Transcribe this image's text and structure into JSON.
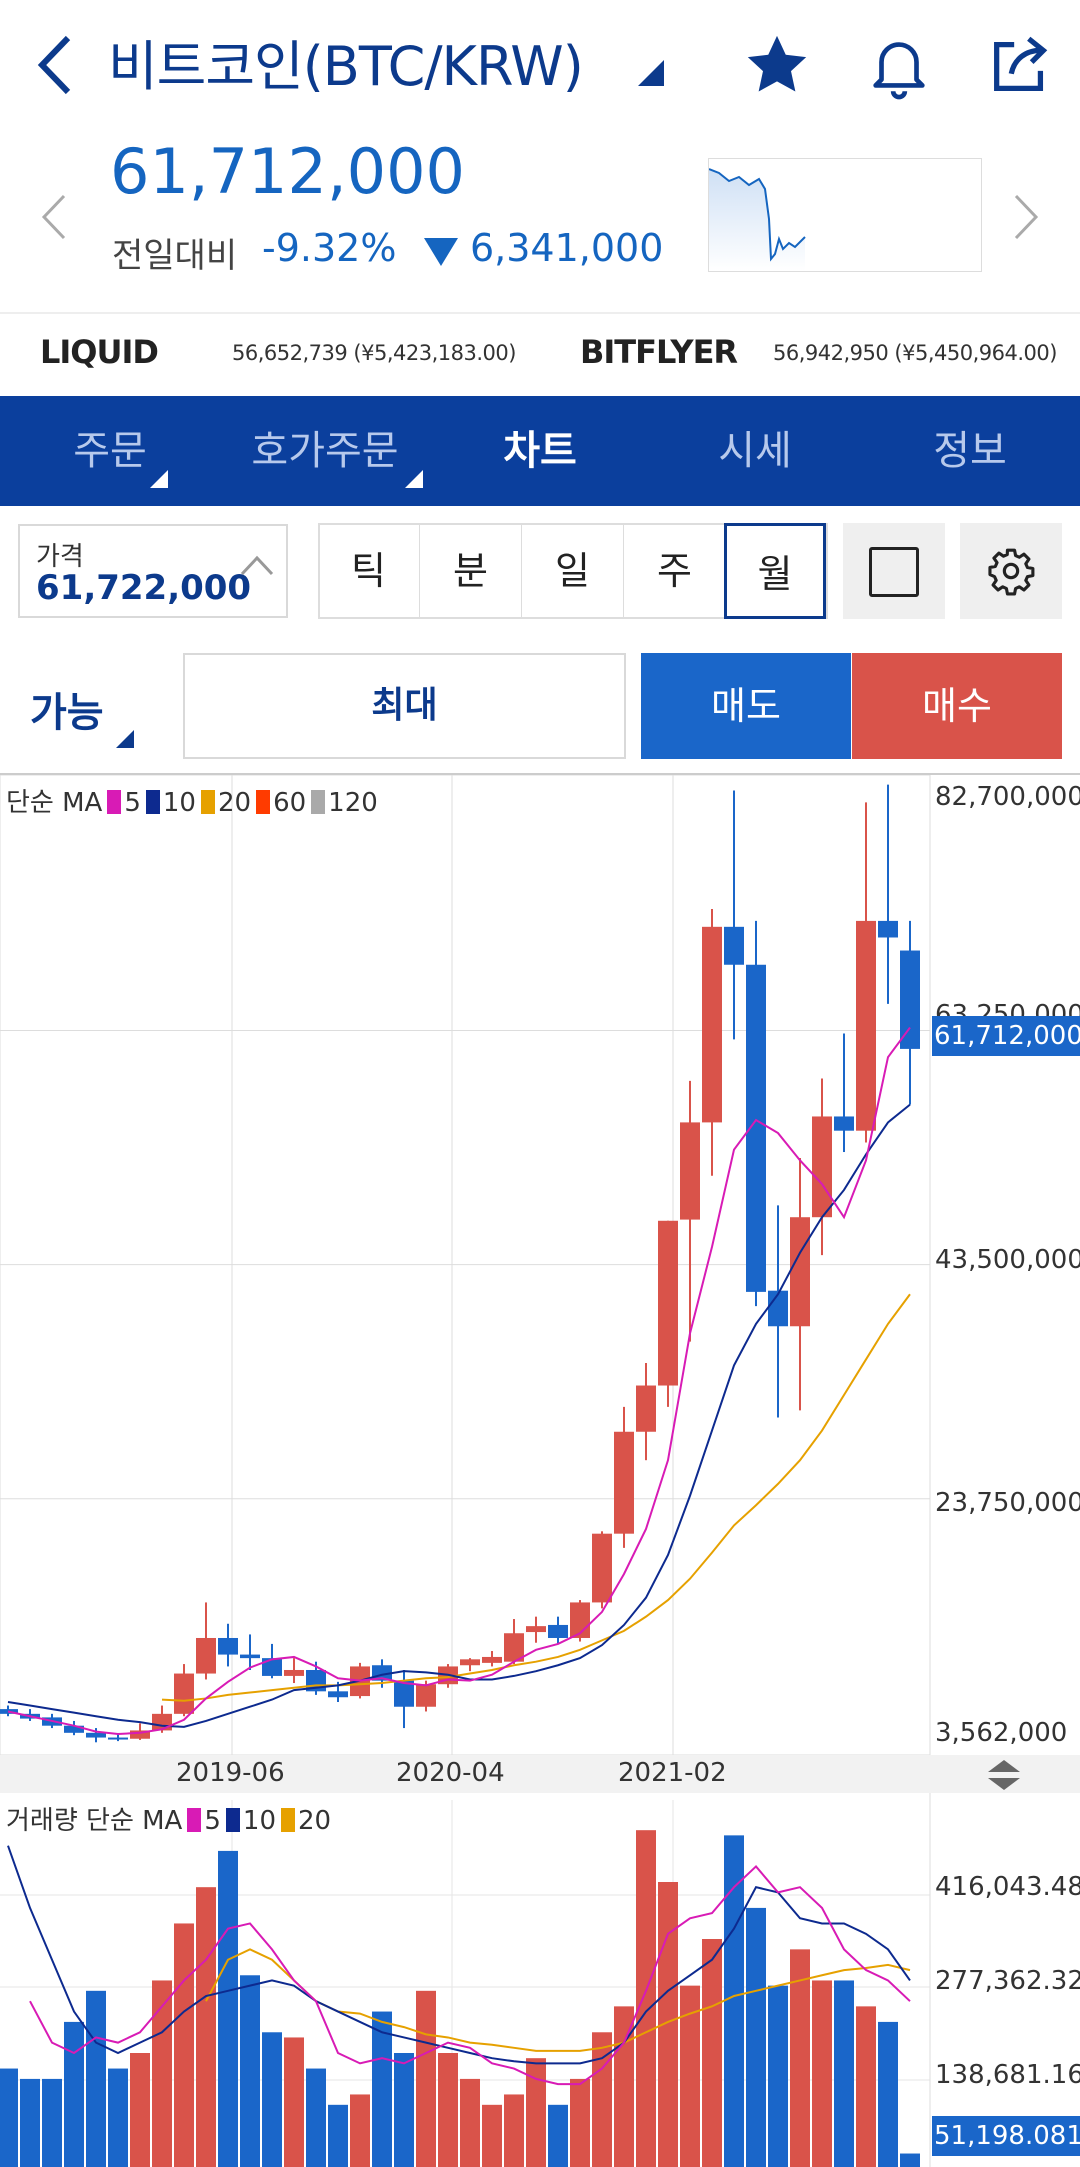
{
  "header": {
    "title": "비트코인(BTC/KRW)",
    "price": "61,712,000",
    "compare_label": "전일대비",
    "compare_pct": "-9.32%",
    "compare_amount": "6,341,000"
  },
  "exchanges": [
    {
      "name": "LIQUID",
      "value": "56,652,739 (¥5,423,183.00)"
    },
    {
      "name": "BITFLYER",
      "value": "56,942,950 (¥5,450,964.00)"
    }
  ],
  "tabs": [
    "주문",
    "호가주문",
    "차트",
    "시세",
    "정보"
  ],
  "active_tab": "차트",
  "price_box": {
    "label": "가격",
    "value": "61,722,000"
  },
  "periods": [
    "틱",
    "분",
    "일",
    "주",
    "월"
  ],
  "selected_period": "월",
  "order": {
    "available_label": "가능",
    "max_label": "최대",
    "sell_label": "매도",
    "buy_label": "매수"
  },
  "colors": {
    "brand": "#0b3f9d",
    "up": "#d9534a",
    "down": "#1a66c9",
    "ma5": "#d81bb5",
    "ma10": "#0d2a8f",
    "ma20": "#e6a100",
    "ma60": "#ff3b00",
    "ma120": "#a9a9a9"
  },
  "price_legend": {
    "label": "단순 MA",
    "items": [
      "5",
      "10",
      "20",
      "60",
      "120"
    ]
  },
  "volume_legend": {
    "label": "거래량 단순 MA",
    "items": [
      "5",
      "10",
      "20"
    ]
  },
  "price_axis": [
    "82,700,000",
    "63,250,000",
    "43,500,000",
    "23,750,000",
    "3,562,000"
  ],
  "current_price_tag": "61,712,000",
  "volume_axis": [
    "416,043.488",
    "277,362.325",
    "138,681.163"
  ],
  "current_volume_tag": "51,198.081",
  "x_labels": [
    "2019-06",
    "2020-04",
    "2021-02"
  ],
  "chart_data": {
    "type": "candlestick",
    "y_unit": "KRW",
    "candles": [
      {
        "o": 6.0,
        "h": 6.3,
        "l": 5.4,
        "c": 5.6
      },
      {
        "o": 5.6,
        "h": 6.0,
        "l": 5.0,
        "c": 5.2
      },
      {
        "o": 5.3,
        "h": 5.6,
        "l": 4.4,
        "c": 4.6
      },
      {
        "o": 4.6,
        "h": 5.0,
        "l": 3.8,
        "c": 4.0
      },
      {
        "o": 4.0,
        "h": 4.4,
        "l": 3.2,
        "c": 3.6
      },
      {
        "o": 3.6,
        "h": 3.9,
        "l": 3.3,
        "c": 3.5
      },
      {
        "o": 3.5,
        "h": 4.8,
        "l": 3.4,
        "c": 4.2
      },
      {
        "o": 4.2,
        "h": 6.3,
        "l": 4.0,
        "c": 5.6
      },
      {
        "o": 5.6,
        "h": 9.8,
        "l": 5.4,
        "c": 9.0
      },
      {
        "o": 9.0,
        "h": 15.0,
        "l": 8.5,
        "c": 12.0
      },
      {
        "o": 12.0,
        "h": 13.2,
        "l": 9.6,
        "c": 10.6
      },
      {
        "o": 10.6,
        "h": 12.3,
        "l": 9.3,
        "c": 10.3
      },
      {
        "o": 10.3,
        "h": 11.5,
        "l": 8.6,
        "c": 8.8
      },
      {
        "o": 8.8,
        "h": 10.3,
        "l": 8.2,
        "c": 9.3
      },
      {
        "o": 9.3,
        "h": 10.0,
        "l": 7.2,
        "c": 7.5
      },
      {
        "o": 7.5,
        "h": 8.3,
        "l": 6.6,
        "c": 7.0
      },
      {
        "o": 7.1,
        "h": 9.9,
        "l": 6.9,
        "c": 9.6
      },
      {
        "o": 9.7,
        "h": 10.2,
        "l": 7.8,
        "c": 8.4
      },
      {
        "o": 8.4,
        "h": 9.3,
        "l": 4.4,
        "c": 6.2
      },
      {
        "o": 6.2,
        "h": 8.4,
        "l": 5.8,
        "c": 8.1
      },
      {
        "o": 8.1,
        "h": 9.8,
        "l": 7.8,
        "c": 9.6
      },
      {
        "o": 9.7,
        "h": 10.3,
        "l": 9.2,
        "c": 10.2
      },
      {
        "o": 9.9,
        "h": 10.9,
        "l": 9.6,
        "c": 10.4
      },
      {
        "o": 10.0,
        "h": 13.6,
        "l": 9.8,
        "c": 12.4
      },
      {
        "o": 12.5,
        "h": 13.8,
        "l": 11.6,
        "c": 13.0
      },
      {
        "o": 13.1,
        "h": 13.8,
        "l": 11.5,
        "c": 12.0
      },
      {
        "o": 12.0,
        "h": 15.2,
        "l": 11.7,
        "c": 15.0
      },
      {
        "o": 15.0,
        "h": 21.0,
        "l": 14.5,
        "c": 20.8
      },
      {
        "o": 20.8,
        "h": 31.5,
        "l": 19.6,
        "c": 29.4
      },
      {
        "o": 29.4,
        "h": 35.2,
        "l": 27.0,
        "c": 33.3
      },
      {
        "o": 33.3,
        "h": 47.2,
        "l": 31.5,
        "c": 47.2
      },
      {
        "o": 47.3,
        "h": 59.0,
        "l": 37.0,
        "c": 55.5
      },
      {
        "o": 55.5,
        "h": 73.5,
        "l": 51.0,
        "c": 72.0
      },
      {
        "o": 72.0,
        "h": 83.5,
        "l": 62.5,
        "c": 68.8
      },
      {
        "o": 68.8,
        "h": 72.5,
        "l": 40.0,
        "c": 41.2
      },
      {
        "o": 41.3,
        "h": 48.5,
        "l": 30.6,
        "c": 38.3
      },
      {
        "o": 38.3,
        "h": 52.5,
        "l": 31.2,
        "c": 47.5
      },
      {
        "o": 47.5,
        "h": 59.2,
        "l": 44.3,
        "c": 56.0
      },
      {
        "o": 56.0,
        "h": 63.0,
        "l": 53.0,
        "c": 54.8
      },
      {
        "o": 54.8,
        "h": 82.5,
        "l": 53.8,
        "c": 72.5
      },
      {
        "o": 72.5,
        "h": 84.0,
        "l": 65.5,
        "c": 71.1
      },
      {
        "o": 70.0,
        "h": 72.5,
        "l": 57.0,
        "c": 61.7
      }
    ],
    "ma5": [
      5.8,
      5.4,
      5.0,
      4.6,
      4.1,
      3.9,
      4.0,
      4.3,
      5.1,
      6.9,
      8.3,
      9.5,
      10.2,
      10.4,
      9.6,
      8.6,
      8.4,
      8.6,
      8.2,
      8.0,
      8.5,
      8.4,
      8.9,
      10.0,
      11.0,
      11.5,
      12.4,
      14.2,
      17.4,
      21.2,
      27.0,
      37.7,
      45.0,
      53.2,
      55.7,
      54.6,
      52.3,
      50.3,
      47.5,
      52.3,
      61.0,
      63.5
    ],
    "ma10": [
      6.6,
      6.3,
      6.0,
      5.7,
      5.4,
      5.1,
      4.9,
      4.6,
      4.5,
      5.0,
      5.6,
      6.2,
      6.8,
      7.6,
      7.8,
      8.0,
      8.4,
      8.9,
      9.2,
      9.1,
      8.9,
      8.5,
      8.5,
      8.8,
      9.2,
      9.7,
      10.3,
      11.4,
      13.1,
      15.4,
      19.0,
      24.0,
      29.5,
      35.0,
      38.5,
      41.0,
      44.5,
      47.5,
      49.8,
      52.8,
      55.5,
      57.0
    ],
    "ma20": [
      null,
      null,
      null,
      null,
      null,
      null,
      null,
      6.8,
      6.7,
      6.9,
      7.2,
      7.4,
      7.6,
      7.8,
      8.0,
      8.0,
      8.1,
      8.2,
      8.4,
      8.6,
      8.7,
      9.0,
      9.3,
      9.7,
      10.0,
      10.4,
      11.0,
      11.8,
      12.6,
      13.8,
      15.2,
      17.0,
      19.2,
      21.5,
      23.2,
      25.0,
      27.0,
      29.5,
      32.5,
      35.5,
      38.5,
      41.0
    ],
    "volume": [
      95,
      85,
      85,
      140,
      170,
      95,
      110,
      180,
      235,
      270,
      305,
      185,
      130,
      125,
      95,
      60,
      70,
      150,
      110,
      170,
      110,
      85,
      60,
      70,
      105,
      60,
      85,
      130,
      155,
      325,
      275,
      175,
      220,
      320,
      250,
      175,
      210,
      180,
      180,
      155,
      140,
      13
    ],
    "vol_ma5": [
      null,
      160,
      120,
      110,
      125,
      120,
      130,
      155,
      180,
      200,
      230,
      235,
      210,
      180,
      160,
      110,
      100,
      105,
      100,
      110,
      120,
      115,
      100,
      95,
      85,
      80,
      80,
      95,
      120,
      170,
      225,
      240,
      245,
      270,
      290,
      265,
      270,
      250,
      210,
      190,
      180,
      160
    ],
    "vol_ma10": [
      310,
      250,
      200,
      150,
      120,
      110,
      120,
      130,
      150,
      165,
      170,
      175,
      180,
      175,
      160,
      150,
      140,
      130,
      125,
      120,
      115,
      110,
      105,
      102,
      100,
      100,
      100,
      105,
      120,
      150,
      170,
      185,
      200,
      230,
      270,
      265,
      240,
      235,
      235,
      225,
      210,
      180
    ],
    "vol_ma20": [
      null,
      null,
      null,
      null,
      null,
      null,
      null,
      null,
      null,
      160,
      200,
      210,
      200,
      180,
      160,
      150,
      148,
      140,
      135,
      128,
      125,
      120,
      118,
      115,
      112,
      112,
      112,
      115,
      120,
      130,
      140,
      148,
      155,
      165,
      170,
      175,
      180,
      185,
      190,
      192,
      195,
      190
    ],
    "vol_unit": "thousand (scaled estimate)"
  }
}
